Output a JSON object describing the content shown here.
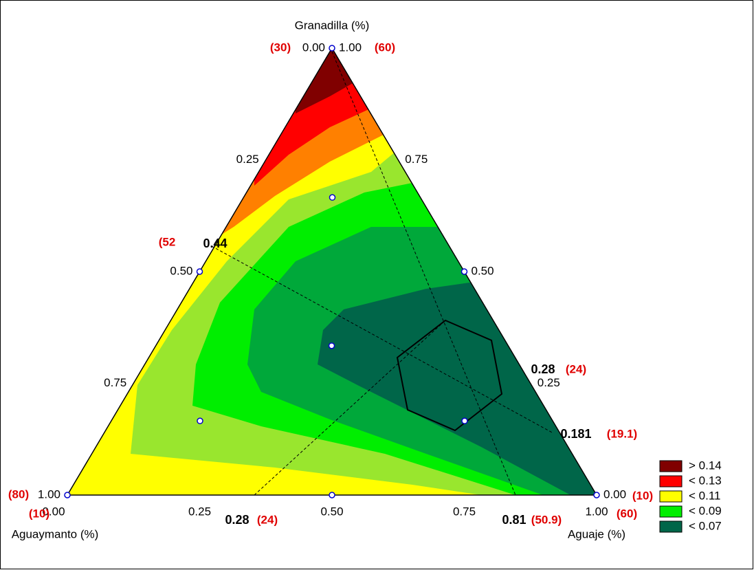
{
  "chart_data": {
    "type": "ternary",
    "axes": [
      {
        "title": "Granadilla (%)",
        "side": "right",
        "ticks": [
          {
            "value": 0,
            "label": "0.00"
          },
          0.25,
          {
            "value": 0.5,
            "label": "0.50"
          },
          0.75,
          {
            "value": 1,
            "label": "1.00"
          }
        ]
      },
      {
        "title": "Aguaymanto (%)",
        "side": "left",
        "ticks": [
          {
            "value": 0,
            "label": "0.00"
          },
          0.25,
          {
            "value": 0.5,
            "label": "0.50"
          },
          0.75,
          {
            "value": 1,
            "label": "1.00"
          }
        ]
      },
      {
        "title": "Aguaje (%)",
        "side": "bottom",
        "ticks": [
          {
            "value": 0,
            "label": "0.00"
          },
          0.25,
          {
            "value": 0.5,
            "label": "0.50"
          },
          0.75,
          {
            "value": 1,
            "label": "1.00"
          }
        ]
      }
    ],
    "points": {
      "color": "#0000cc",
      "granadilla": [
        1,
        0,
        0,
        0.5,
        0.5,
        0,
        0.667,
        0.333,
        0.167,
        0.167
      ],
      "aguaje": [
        0,
        0,
        1,
        0,
        0.5,
        0.5,
        0.167,
        0.333,
        0.167,
        0.667
      ],
      "aguaymanto": [
        0,
        1,
        0,
        0.5,
        0,
        0.5,
        0.167,
        0.333,
        0.667,
        0.167
      ]
    },
    "annotations": [
      "(30)",
      "(60)",
      "(52",
      "0.44",
      "0.28",
      "(24)",
      "0.181",
      "(19.1)",
      "(80)",
      "(10)",
      "0.28",
      "(24)",
      "0.81",
      "(50.9)",
      "(10)",
      "(60)"
    ],
    "legend": {
      "position": "right",
      "entries": [
        {
          "label": "> 0.14",
          "color": "#800000"
        },
        {
          "label": "< 0.13",
          "color": "#ff0000"
        },
        {
          "label": "< 0.11",
          "color": "#ffff00"
        },
        {
          "label": "< 0.09",
          "color": "#00ee00"
        },
        {
          "label": "< 0.07",
          "color": "#006649"
        }
      ]
    }
  }
}
